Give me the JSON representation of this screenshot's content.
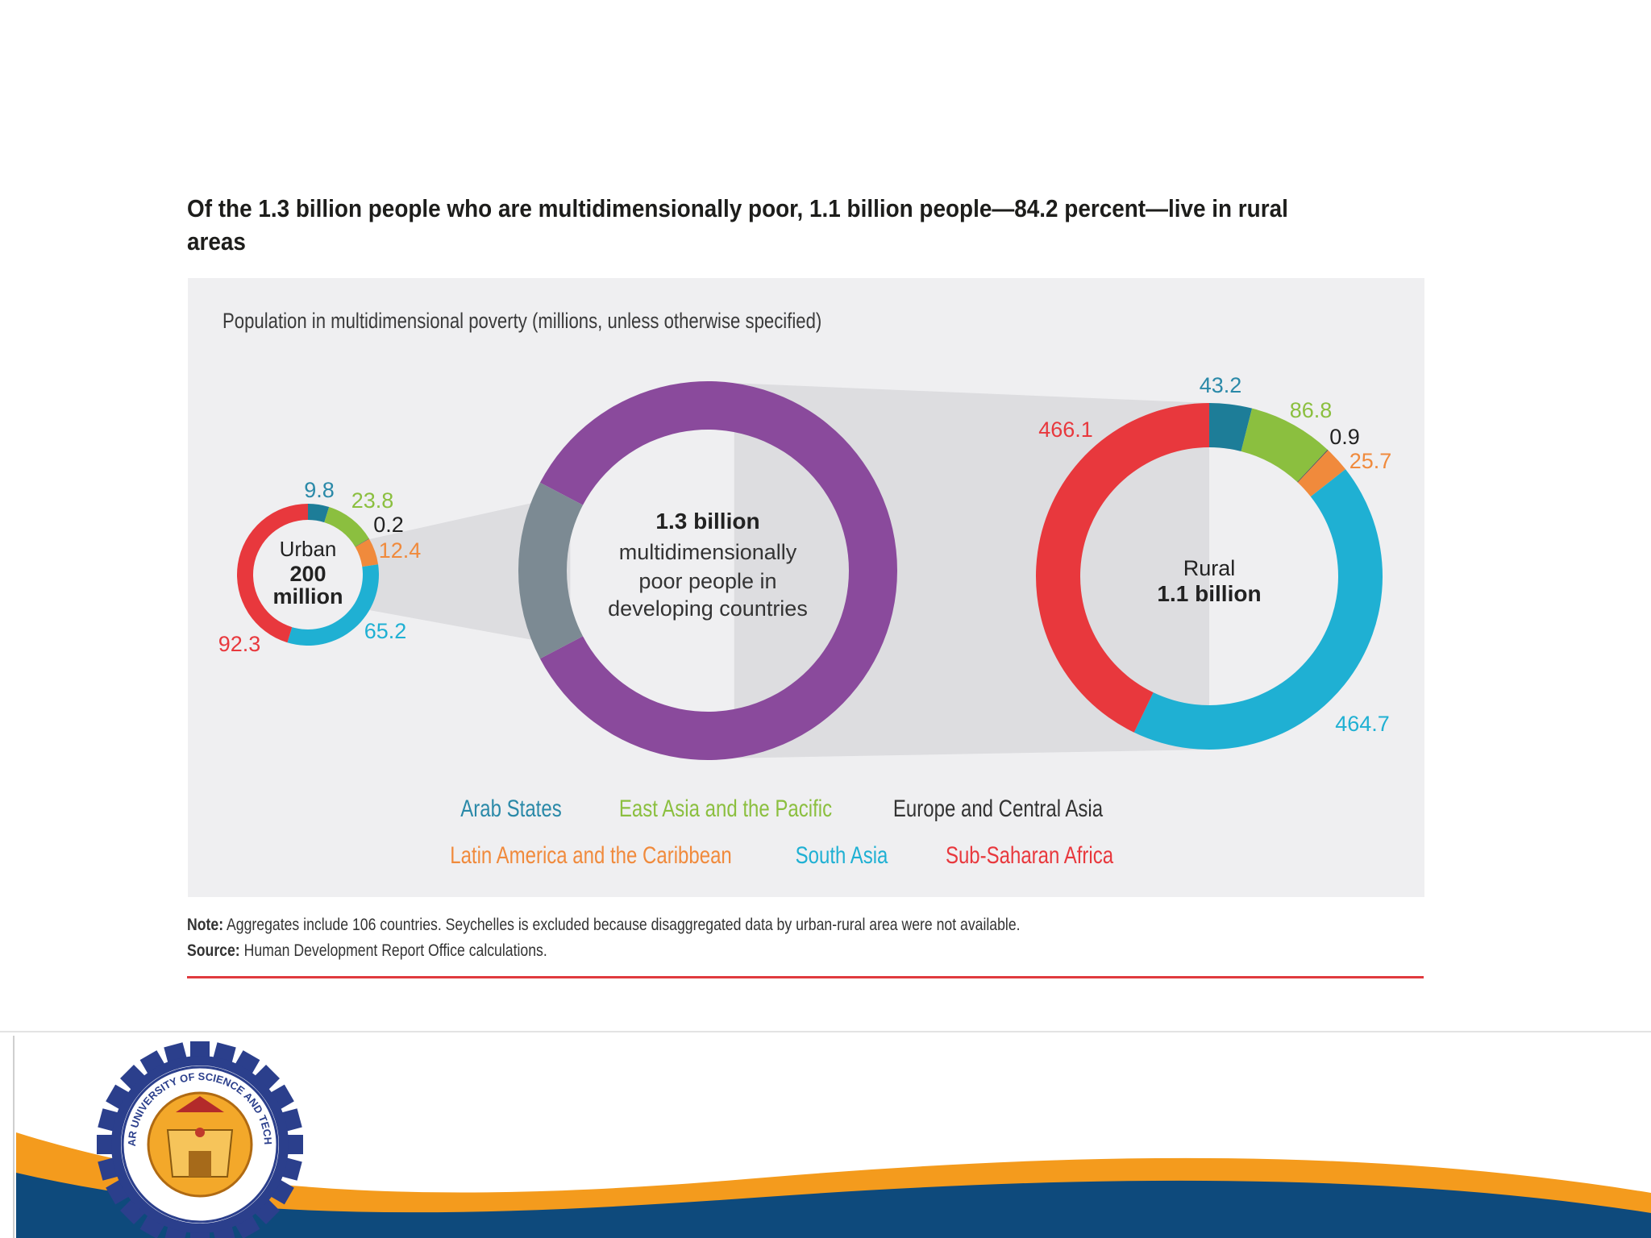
{
  "title": "Of the 1.3 billion people who are multidimensionally poor, 1.1 billion people—84.2 percent—live in rural areas",
  "chart_data": {
    "type": "pie",
    "subtitle": "Population in multidimensional poverty (millions, unless otherwise specified)",
    "center": {
      "line1": "1.3 billion",
      "line2": "multidimensionally",
      "line3": "poor people in",
      "line4": "developing countries",
      "slices": [
        {
          "name": "Rural",
          "value": 1.1
        },
        {
          "name": "Urban",
          "value": 0.2
        }
      ]
    },
    "urban": {
      "label": "Urban",
      "total_line1": "200",
      "total_line2": "million",
      "slices": [
        {
          "region": "Arab States",
          "value": 9.8,
          "label": "9.8"
        },
        {
          "region": "East Asia and the Pacific",
          "value": 23.8,
          "label": "23.8"
        },
        {
          "region": "Europe and Central Asia",
          "value": 0.2,
          "label": "0.2"
        },
        {
          "region": "Latin America and the Caribbean",
          "value": 12.4,
          "label": "12.4"
        },
        {
          "region": "South Asia",
          "value": 65.2,
          "label": "65.2"
        },
        {
          "region": "Sub-Saharan Africa",
          "value": 92.3,
          "label": "92.3"
        }
      ]
    },
    "rural": {
      "label": "Rural",
      "total": "1.1 billion",
      "slices": [
        {
          "region": "Arab States",
          "value": 43.2,
          "label": "43.2"
        },
        {
          "region": "East Asia and the Pacific",
          "value": 86.8,
          "label": "86.8"
        },
        {
          "region": "Europe and Central Asia",
          "value": 0.9,
          "label": "0.9"
        },
        {
          "region": "Latin America and the Caribbean",
          "value": 25.7,
          "label": "25.7"
        },
        {
          "region": "South Asia",
          "value": 464.7,
          "label": "464.7"
        },
        {
          "region": "Sub-Saharan Africa",
          "value": 466.1,
          "label": "466.1"
        }
      ]
    },
    "legend": [
      {
        "label": "Arab States",
        "color": "#2a89a8"
      },
      {
        "label": "East Asia and the Pacific",
        "color": "#8bbf3f"
      },
      {
        "label": "Europe and Central Asia",
        "color": "#333333"
      },
      {
        "label": "Latin America and the Caribbean",
        "color": "#f08a3c"
      },
      {
        "label": "South Asia",
        "color": "#1fb0d3"
      },
      {
        "label": "Sub-Saharan Africa",
        "color": "#e8383d"
      }
    ],
    "colors": {
      "Arab States": "#1d7d98",
      "East Asia and the Pacific": "#8bbf3f",
      "Europe and Central Asia": "#555555",
      "Latin America and the Caribbean": "#f08a3c",
      "South Asia": "#1fb0d3",
      "Sub-Saharan Africa": "#e8383d",
      "Rural": "#8a4a9c",
      "Urban": "#7c8a93"
    }
  },
  "note": {
    "label": "Note:",
    "text": "Aggregates include 106 countries. Seychelles is excluded because disaggregated data by urban-rural area were not available."
  },
  "source": {
    "label": "Source:",
    "text": "Human Development Report Office calculations."
  },
  "logo": {
    "text": "BAHIR DAR UNIVERSITY OF SCIENCE AND TECHNOLOGY"
  },
  "footer_colors": {
    "orange": "#f49b1d",
    "navy": "#0e4a7c"
  }
}
